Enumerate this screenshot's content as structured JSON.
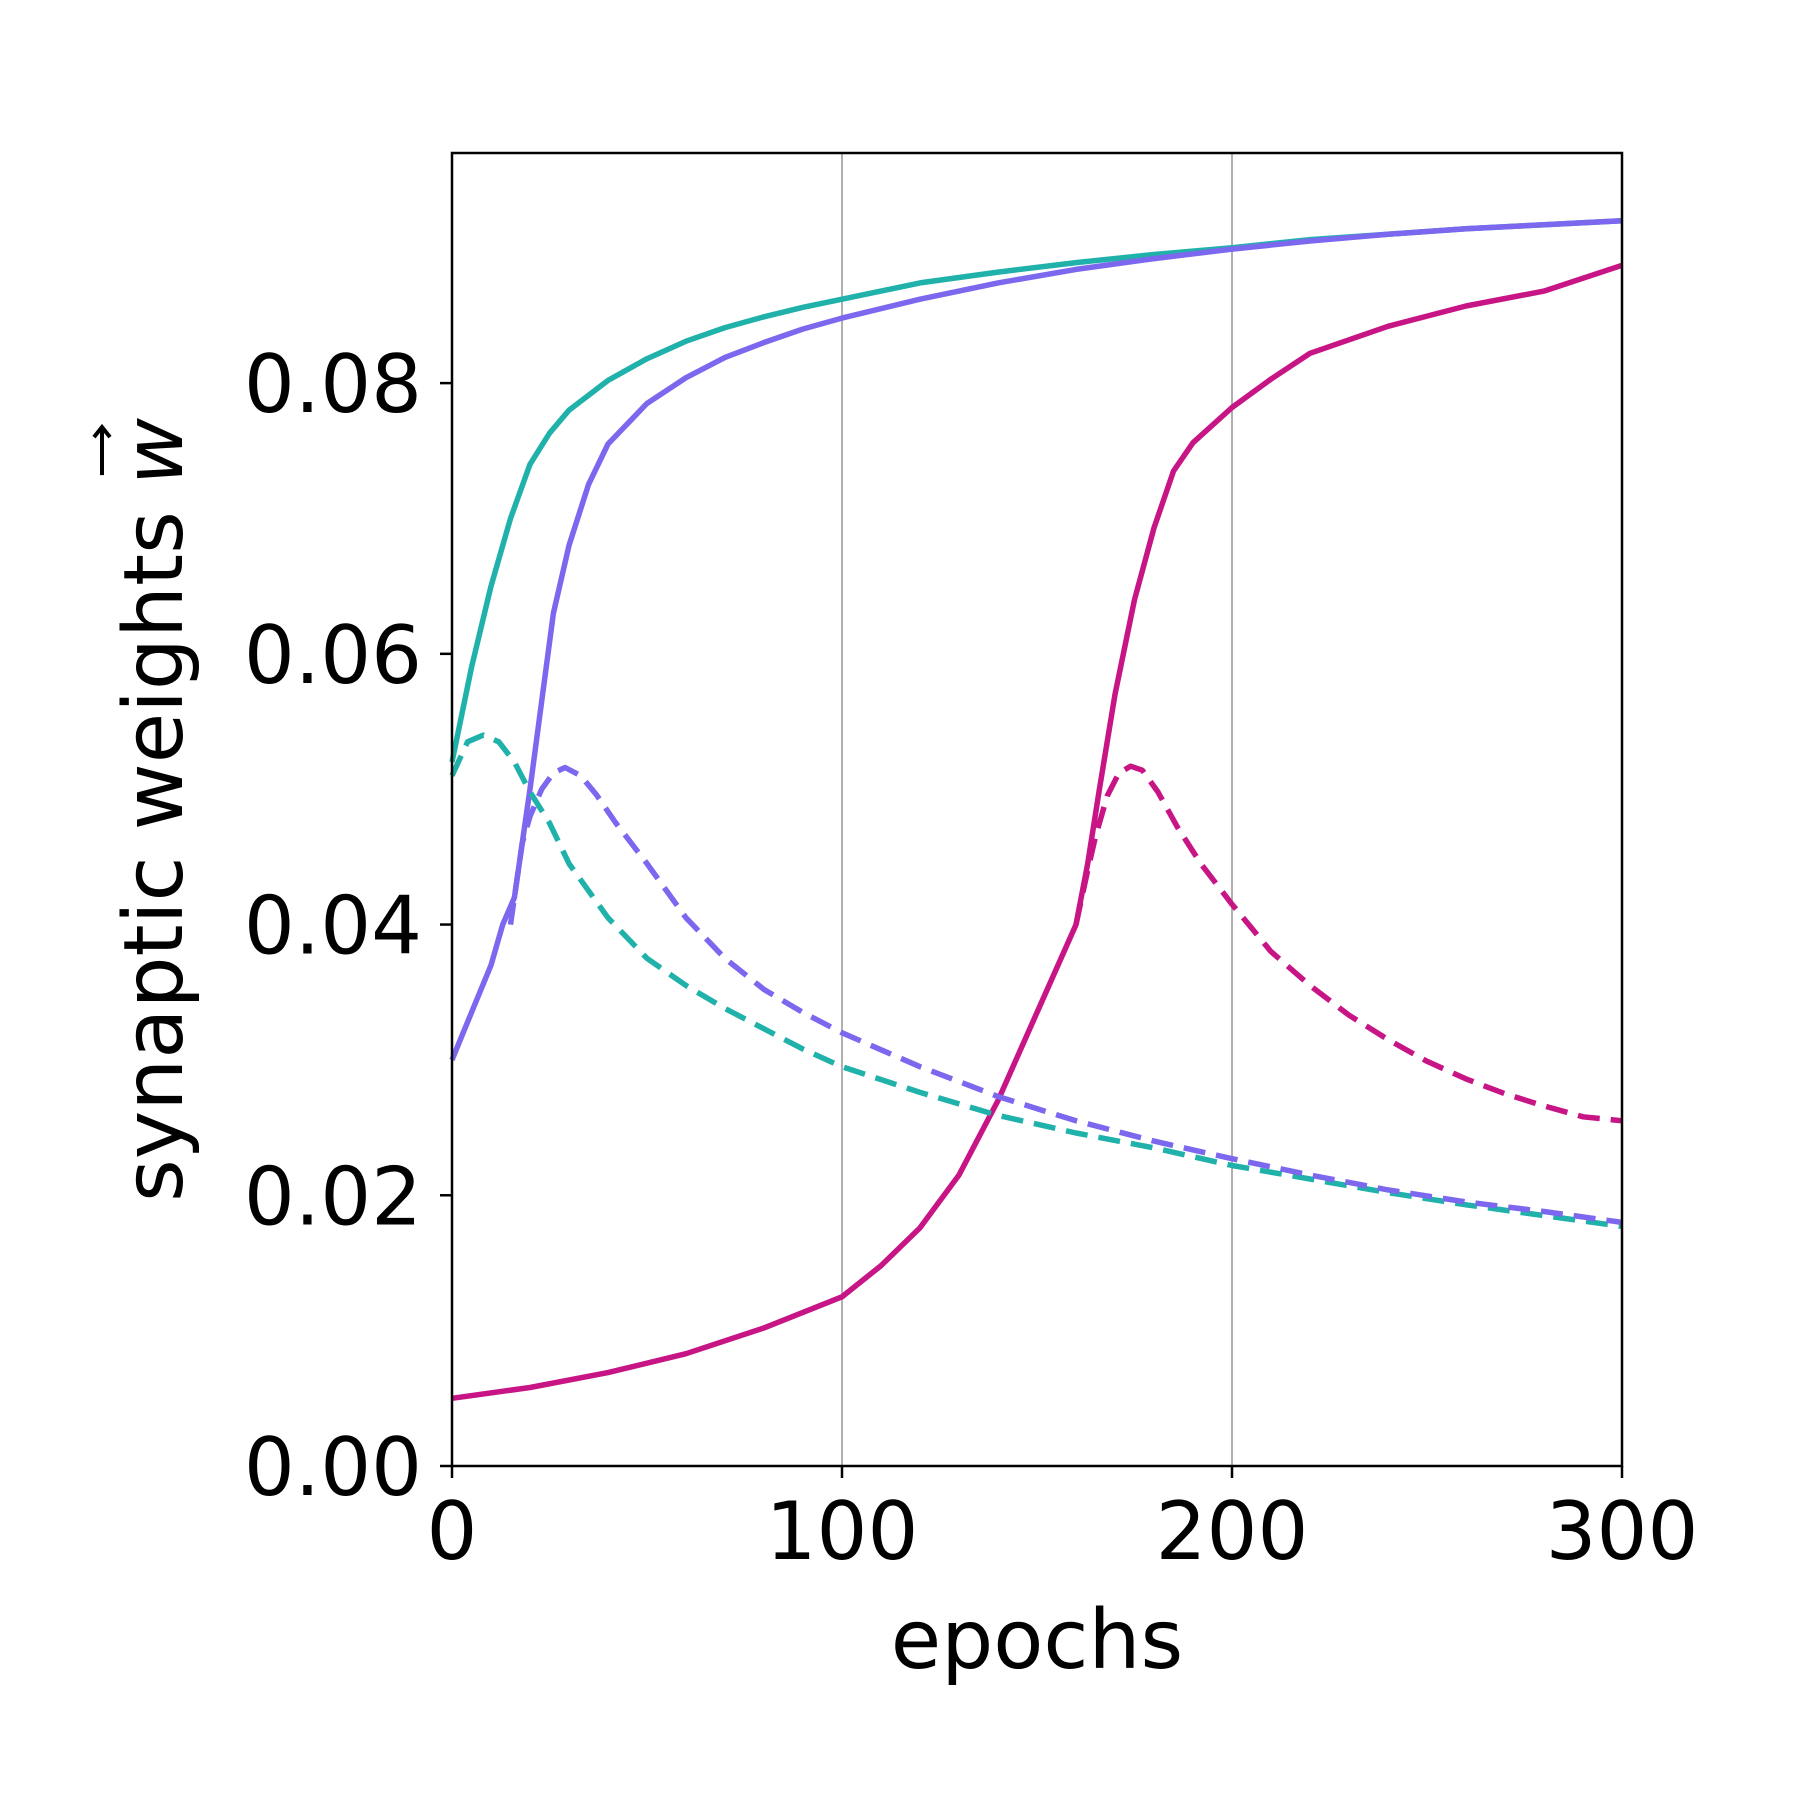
{
  "chart_data": {
    "type": "line",
    "title": "",
    "xlabel": "epochs",
    "ylabel": "synaptic weights",
    "ylabel_symbol": "w",
    "xlim": [
      0,
      300
    ],
    "ylim": [
      0,
      0.097
    ],
    "xticks": [
      0,
      100,
      200,
      300
    ],
    "xtick_labels": [
      "0",
      "100",
      "200",
      "300"
    ],
    "yticks": [
      0,
      0.02,
      0.04,
      0.06,
      0.08
    ],
    "ytick_labels": [
      "0.00",
      "0.02",
      "0.04",
      "0.06",
      "0.08"
    ],
    "grid": "vertical lines at x ticks",
    "legend": "none",
    "series": [
      {
        "color": "#20b2aa",
        "dash": "solid",
        "x": [
          0,
          5,
          10,
          15,
          20,
          25,
          30,
          40,
          50,
          60,
          70,
          80,
          90,
          100,
          120,
          140,
          160,
          180,
          200,
          220,
          240,
          260,
          280,
          300
        ],
        "y": [
          0.052,
          0.059,
          0.065,
          0.07,
          0.074,
          0.0763,
          0.078,
          0.0802,
          0.0818,
          0.0831,
          0.0841,
          0.0849,
          0.0856,
          0.0862,
          0.0874,
          0.0882,
          0.0889,
          0.0895,
          0.09,
          0.0906,
          0.091,
          0.0914,
          0.0917,
          0.092
        ]
      },
      {
        "color": "#7b68ee",
        "dash": "solid",
        "x": [
          0,
          5,
          10,
          13,
          16,
          18,
          20,
          23,
          26,
          30,
          35,
          40,
          50,
          60,
          70,
          80,
          90,
          100,
          120,
          140,
          160,
          180,
          200,
          220,
          240,
          260,
          280,
          300
        ],
        "y": [
          0.03,
          0.0335,
          0.037,
          0.04,
          0.042,
          0.046,
          0.05,
          0.0565,
          0.063,
          0.068,
          0.0725,
          0.0755,
          0.0785,
          0.0804,
          0.0819,
          0.083,
          0.084,
          0.0848,
          0.0862,
          0.0874,
          0.0884,
          0.0892,
          0.0899,
          0.0905,
          0.091,
          0.0914,
          0.0917,
          0.092
        ]
      },
      {
        "color": "#c71585",
        "dash": "solid",
        "x": [
          0,
          20,
          40,
          60,
          80,
          100,
          110,
          120,
          130,
          140,
          150,
          160,
          163,
          166,
          170,
          175,
          180,
          185,
          190,
          200,
          210,
          220,
          240,
          260,
          280,
          300
        ],
        "y": [
          0.005,
          0.0058,
          0.0069,
          0.0083,
          0.0102,
          0.0125,
          0.0148,
          0.0176,
          0.0215,
          0.027,
          0.0335,
          0.04,
          0.0445,
          0.05,
          0.057,
          0.064,
          0.0693,
          0.0735,
          0.0756,
          0.0782,
          0.0803,
          0.0822,
          0.0842,
          0.0857,
          0.0868,
          0.0887
        ]
      },
      {
        "color": "#20b2aa",
        "dash": "dashed",
        "x": [
          0,
          4,
          8,
          12,
          16,
          20,
          25,
          30,
          40,
          50,
          60,
          70,
          80,
          90,
          100,
          120,
          140,
          160,
          180,
          200,
          220,
          240,
          260,
          280,
          300
        ],
        "y": [
          0.051,
          0.0535,
          0.054,
          0.0535,
          0.052,
          0.0498,
          0.0475,
          0.0445,
          0.0405,
          0.0375,
          0.0355,
          0.0338,
          0.0323,
          0.0308,
          0.0295,
          0.0276,
          0.0259,
          0.0246,
          0.0235,
          0.0222,
          0.0212,
          0.0202,
          0.0193,
          0.0185,
          0.0177
        ]
      },
      {
        "color": "#7b68ee",
        "dash": "dashed",
        "x": [
          15,
          18,
          20,
          23,
          26,
          29,
          33,
          37,
          42,
          50,
          60,
          70,
          80,
          90,
          100,
          120,
          140,
          160,
          180,
          200,
          220,
          240,
          260,
          280,
          300
        ],
        "y": [
          0.04,
          0.046,
          0.048,
          0.05,
          0.0512,
          0.0516,
          0.051,
          0.0496,
          0.0475,
          0.0445,
          0.0405,
          0.0375,
          0.0352,
          0.0335,
          0.032,
          0.0295,
          0.0273,
          0.0255,
          0.024,
          0.0227,
          0.0215,
          0.0204,
          0.0195,
          0.0188,
          0.018
        ]
      },
      {
        "color": "#c71585",
        "dash": "dashed",
        "x": [
          160,
          163,
          165,
          168,
          171,
          174,
          177,
          181,
          186,
          192,
          200,
          210,
          220,
          230,
          240,
          250,
          260,
          270,
          280,
          290,
          300
        ],
        "y": [
          0.04,
          0.044,
          0.0465,
          0.0495,
          0.0512,
          0.0517,
          0.0514,
          0.0498,
          0.0472,
          0.0445,
          0.0415,
          0.038,
          0.0355,
          0.0333,
          0.0315,
          0.0299,
          0.0286,
          0.0275,
          0.0266,
          0.0258,
          0.0255
        ]
      }
    ]
  }
}
